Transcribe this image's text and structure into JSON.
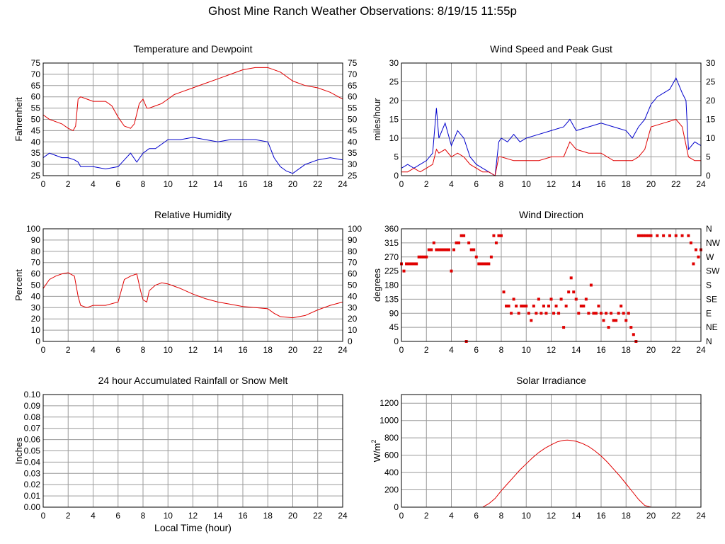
{
  "page": {
    "title": "Ghost Mine Ranch Weather Observations: 8/19/15 11:55p",
    "x_axis_label": "Local Time (hour)"
  },
  "colors": {
    "red": "#e00000",
    "blue": "#0000cc",
    "grid": "#9a9a9a",
    "frame": "#000000"
  },
  "chart_data": [
    {
      "id": "temp",
      "type": "line",
      "title": "Temperature and Dewpoint",
      "ylabel": "Fahrenheit",
      "xlim": [
        0,
        24
      ],
      "ylim": [
        25,
        75
      ],
      "grid": true,
      "right_axis": true,
      "xticks": [
        0,
        2,
        4,
        6,
        8,
        10,
        12,
        14,
        16,
        18,
        20,
        22,
        24
      ],
      "yticks": [
        25,
        30,
        35,
        40,
        45,
        50,
        55,
        60,
        65,
        70,
        75
      ],
      "series": [
        {
          "color": "red",
          "x": [
            0,
            0.5,
            1,
            1.5,
            2,
            2.4,
            2.6,
            2.8,
            3,
            3.5,
            4,
            4.5,
            5,
            5.5,
            6,
            6.5,
            7,
            7.3,
            7.7,
            8,
            8.3,
            8.5,
            9,
            9.5,
            10,
            10.5,
            11,
            12,
            13,
            14,
            15,
            16,
            17,
            18,
            19,
            20,
            21,
            22,
            23,
            24
          ],
          "y": [
            52,
            50,
            49,
            48,
            46,
            45,
            47,
            59,
            60,
            59,
            58,
            58,
            58,
            56,
            51,
            47,
            46,
            48,
            57,
            59,
            55,
            55,
            56,
            57,
            59,
            61,
            62,
            64,
            66,
            68,
            70,
            72,
            73,
            73,
            71,
            67,
            65,
            64,
            62,
            59
          ]
        },
        {
          "color": "blue",
          "x": [
            0,
            0.5,
            1,
            1.5,
            2,
            2.5,
            2.8,
            3,
            4,
            5,
            6,
            6.5,
            7,
            7.5,
            8,
            8.5,
            9,
            9.5,
            10,
            11,
            12,
            13,
            14,
            15,
            16,
            17,
            18,
            18.5,
            19,
            19.5,
            20,
            21,
            22,
            23,
            24
          ],
          "y": [
            33,
            35,
            34,
            33,
            33,
            32,
            31,
            29,
            29,
            28,
            29,
            32,
            35,
            31,
            35,
            37,
            37,
            39,
            41,
            41,
            42,
            41,
            40,
            41,
            41,
            41,
            40,
            33,
            29,
            27,
            26,
            30,
            32,
            33,
            32
          ]
        }
      ]
    },
    {
      "id": "wind",
      "type": "line",
      "title": "Wind Speed and Peak Gust",
      "ylabel": "miles/hour",
      "xlim": [
        0,
        24
      ],
      "ylim": [
        0,
        30
      ],
      "grid": true,
      "right_axis": true,
      "xticks": [
        0,
        2,
        4,
        6,
        8,
        10,
        12,
        14,
        16,
        18,
        20,
        22,
        24
      ],
      "yticks": [
        0,
        5,
        10,
        15,
        20,
        25,
        30
      ],
      "series": [
        {
          "color": "blue",
          "x": [
            0,
            0.5,
            1,
            1.5,
            2,
            2.5,
            2.8,
            3,
            3.5,
            4,
            4.5,
            5,
            5.5,
            6,
            6.5,
            7,
            7.5,
            7.8,
            8,
            8.5,
            9,
            9.5,
            10,
            11,
            12,
            13,
            13.5,
            14,
            15,
            16,
            17,
            18,
            18.5,
            19,
            19.5,
            20,
            20.5,
            21,
            21.5,
            22,
            22.5,
            22.8,
            23,
            23.5,
            24
          ],
          "y": [
            2,
            3,
            2,
            3,
            4,
            6,
            18,
            10,
            14,
            8,
            12,
            10,
            5,
            3,
            2,
            1,
            0,
            9,
            10,
            9,
            11,
            9,
            10,
            11,
            12,
            13,
            15,
            12,
            13,
            14,
            13,
            12,
            10,
            13,
            15,
            19,
            21,
            22,
            23,
            26,
            22,
            20,
            7,
            9,
            8
          ]
        },
        {
          "color": "red",
          "x": [
            0,
            0.5,
            1,
            1.5,
            2,
            2.5,
            2.8,
            3,
            3.5,
            4,
            4.5,
            5,
            5.5,
            6,
            6.5,
            7,
            7.5,
            7.8,
            8,
            9,
            10,
            11,
            12,
            13,
            13.5,
            14,
            15,
            16,
            17,
            18,
            18.5,
            19,
            19.5,
            20,
            21,
            22,
            22.5,
            23,
            23.5,
            24
          ],
          "y": [
            1,
            1,
            2,
            1,
            2,
            3,
            7,
            6,
            7,
            5,
            6,
            5,
            3,
            2,
            1,
            1,
            0,
            5,
            5,
            4,
            4,
            4,
            5,
            5,
            9,
            7,
            6,
            6,
            4,
            4,
            4,
            5,
            7,
            13,
            14,
            15,
            13,
            5,
            4,
            4
          ]
        }
      ]
    },
    {
      "id": "rh",
      "type": "line",
      "title": "Relative Humidity",
      "ylabel": "Percent",
      "xlim": [
        0,
        24
      ],
      "ylim": [
        0,
        100
      ],
      "grid": true,
      "right_axis": true,
      "xticks": [
        0,
        2,
        4,
        6,
        8,
        10,
        12,
        14,
        16,
        18,
        20,
        22,
        24
      ],
      "yticks": [
        0,
        10,
        20,
        30,
        40,
        50,
        60,
        70,
        80,
        90,
        100
      ],
      "series": [
        {
          "color": "red",
          "x": [
            0,
            0.5,
            1,
            1.5,
            2,
            2.5,
            2.8,
            3,
            3.5,
            4,
            5,
            6,
            6.5,
            7,
            7.5,
            7.8,
            8,
            8.3,
            8.5,
            9,
            9.5,
            10,
            11,
            12,
            13,
            14,
            15,
            16,
            17,
            18,
            18.5,
            19,
            20,
            21,
            22,
            23,
            24
          ],
          "y": [
            47,
            55,
            58,
            60,
            61,
            58,
            40,
            32,
            30,
            32,
            32,
            35,
            55,
            58,
            60,
            45,
            37,
            35,
            45,
            50,
            52,
            51,
            47,
            42,
            38,
            35,
            33,
            31,
            30,
            29,
            25,
            22,
            21,
            23,
            28,
            32,
            35
          ]
        }
      ]
    },
    {
      "id": "wdir",
      "type": "scatter",
      "title": "Wind Direction",
      "ylabel": "degrees",
      "xlim": [
        0,
        24
      ],
      "ylim": [
        0,
        360
      ],
      "grid": true,
      "right_axis": true,
      "xticks": [
        0,
        2,
        4,
        6,
        8,
        10,
        12,
        14,
        16,
        18,
        20,
        22,
        24
      ],
      "yticks": [
        0,
        45,
        90,
        135,
        180,
        225,
        270,
        315,
        360
      ],
      "right_ticklabels": [
        "N",
        "NE",
        "E",
        "SE",
        "S",
        "SW",
        "W",
        "NW",
        "N"
      ],
      "series": [
        {
          "color": "red",
          "x": [
            0,
            0.2,
            0.4,
            0.6,
            0.8,
            1,
            1.2,
            1.4,
            1.6,
            1.8,
            2,
            2.2,
            2.4,
            2.6,
            2.8,
            3,
            3.2,
            3.4,
            3.6,
            3.8,
            4,
            4.2,
            4.4,
            4.6,
            4.8,
            5,
            5.2,
            5.4,
            5.6,
            5.8,
            6,
            6.2,
            6.4,
            6.6,
            6.8,
            7,
            7.2,
            7.4,
            7.6,
            7.8,
            8,
            8.2,
            8.4,
            8.6,
            8.8,
            9,
            9.2,
            9.4,
            9.6,
            9.8,
            10,
            10.2,
            10.4,
            10.6,
            10.8,
            11,
            11.2,
            11.4,
            11.6,
            11.8,
            12,
            12.2,
            12.4,
            12.6,
            12.8,
            13,
            13.2,
            13.4,
            13.6,
            13.8,
            14,
            14.2,
            14.4,
            14.6,
            14.8,
            15,
            15.2,
            15.4,
            15.6,
            15.8,
            16,
            16.2,
            16.4,
            16.6,
            16.8,
            17,
            17.2,
            17.4,
            17.6,
            17.8,
            18,
            18.2,
            18.4,
            18.6,
            18.8,
            19,
            19.2,
            19.4,
            19.6,
            19.8,
            20,
            20.5,
            21,
            21.5,
            22,
            22.5,
            23,
            23.2,
            23.4,
            23.6,
            23.8,
            24
          ],
          "y": [
            248,
            225,
            248,
            248,
            248,
            248,
            248,
            270,
            270,
            270,
            270,
            293,
            293,
            315,
            293,
            293,
            293,
            293,
            293,
            293,
            225,
            293,
            315,
            315,
            338,
            338,
            0,
            315,
            293,
            293,
            270,
            248,
            248,
            248,
            248,
            248,
            270,
            338,
            315,
            338,
            338,
            158,
            113,
            113,
            90,
            135,
            113,
            90,
            113,
            113,
            113,
            90,
            67,
            113,
            90,
            135,
            90,
            113,
            90,
            113,
            135,
            90,
            113,
            90,
            135,
            45,
            113,
            158,
            203,
            158,
            135,
            90,
            113,
            113,
            135,
            90,
            180,
            90,
            90,
            113,
            90,
            67,
            90,
            45,
            90,
            67,
            67,
            90,
            113,
            90,
            67,
            90,
            45,
            22,
            0,
            338,
            338,
            338,
            338,
            338,
            338,
            338,
            338,
            338,
            338,
            338,
            338,
            315,
            248,
            293,
            270,
            293
          ]
        }
      ]
    },
    {
      "id": "rain",
      "type": "line",
      "title": "24 hour Accumulated Rainfall or Snow Melt",
      "ylabel": "Inches",
      "xlim": [
        0,
        24
      ],
      "ylim": [
        0,
        0.1
      ],
      "grid": true,
      "right_axis": false,
      "xticks": [
        0,
        2,
        4,
        6,
        8,
        10,
        12,
        14,
        16,
        18,
        20,
        22,
        24
      ],
      "yticks": [
        "0.00",
        "0.01",
        "0.02",
        "0.03",
        "0.04",
        "0.05",
        "0.06",
        "0.07",
        "0.08",
        "0.09",
        "0.10"
      ],
      "series": [
        {
          "color": "red",
          "x": [
            0,
            24
          ],
          "y": [
            0,
            0
          ]
        }
      ]
    },
    {
      "id": "solar",
      "type": "line",
      "title": "Solar Irradiance",
      "ylabel": "W/m",
      "ylabel_sup": "2",
      "xlim": [
        0,
        24
      ],
      "ylim": [
        0,
        1300
      ],
      "grid": true,
      "right_axis": false,
      "xticks": [
        0,
        2,
        4,
        6,
        8,
        10,
        12,
        14,
        16,
        18,
        20,
        22,
        24
      ],
      "yticks": [
        0,
        200,
        400,
        600,
        800,
        1000,
        1200
      ],
      "series": [
        {
          "color": "red",
          "x": [
            0,
            6.5,
            7,
            7.5,
            8,
            8.5,
            9,
            9.5,
            10,
            10.5,
            11,
            11.5,
            12,
            12.5,
            13,
            13.3,
            13.5,
            14,
            14.5,
            15,
            15.5,
            16,
            16.5,
            17,
            17.5,
            18,
            18.5,
            19,
            19.5,
            20,
            24
          ],
          "y": [
            0,
            0,
            40,
            100,
            190,
            270,
            350,
            430,
            500,
            570,
            630,
            680,
            720,
            755,
            772,
            775,
            772,
            760,
            735,
            700,
            650,
            590,
            520,
            440,
            360,
            270,
            180,
            90,
            20,
            0,
            0
          ]
        }
      ]
    }
  ]
}
